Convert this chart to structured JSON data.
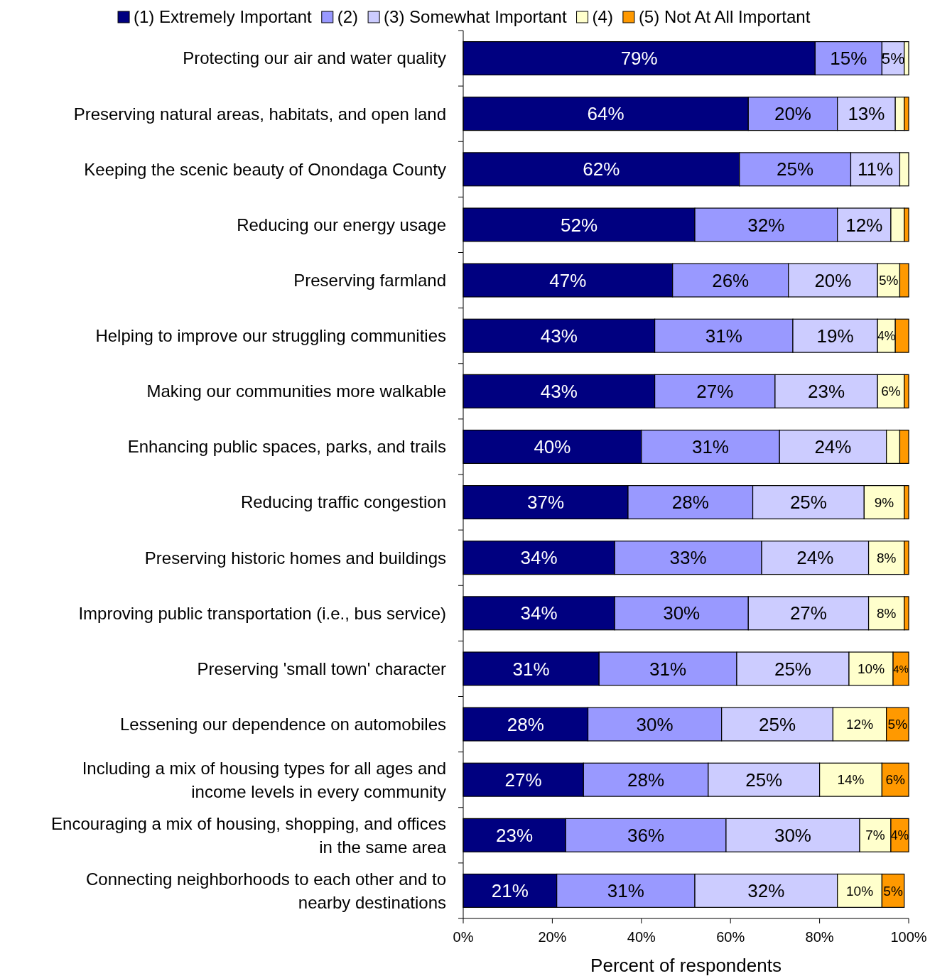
{
  "chart_data": {
    "type": "bar",
    "orientation": "horizontal",
    "stacked": true,
    "legend": "top",
    "grid": false,
    "xlabel": "Percent of respondents",
    "categories": [
      "Protecting our air and water quality",
      "Preserving natural areas, habitats, and open land",
      "Keeping the scenic beauty of Onondaga County",
      "Reducing our energy usage",
      "Preserving farmland",
      "Helping to improve our struggling communities",
      "Making our communities more walkable",
      "Enhancing public spaces, parks, and trails",
      "Reducing traffic congestion",
      "Preserving historic homes and buildings",
      "Improving public transportation (i.e., bus service)",
      "Preserving 'small town' character",
      "Lessening our dependence on automobiles",
      "Including a mix of housing types for all ages and income levels in every community",
      "Encouraging a mix of housing, shopping, and offices in the same area",
      "Connecting neighborhoods to each other and to nearby destinations"
    ],
    "xlim": [
      0,
      100
    ],
    "xticks": [
      {
        "value": 0,
        "label": "0%"
      },
      {
        "value": 20,
        "label": "20%"
      },
      {
        "value": 40,
        "label": "40%"
      },
      {
        "value": 60,
        "label": "60%"
      },
      {
        "value": 80,
        "label": "80%"
      },
      {
        "value": 100,
        "label": "100%"
      }
    ],
    "series": [
      {
        "name": "(1) Extremely Important",
        "color": "#000080",
        "values": [
          79,
          64,
          62,
          52,
          47,
          43,
          43,
          40,
          37,
          34,
          34,
          30.5,
          28,
          27,
          23,
          21
        ],
        "value_labels": [
          "79%",
          "64%",
          "62%",
          "52%",
          "47%",
          "43%",
          "43%",
          "40%",
          "37%",
          "34%",
          "34%",
          "31%",
          "28%",
          "27%",
          "23%",
          "21%"
        ]
      },
      {
        "name": "(2)",
        "color": "#9999ff",
        "values": [
          15,
          20,
          25,
          32,
          26,
          31,
          27,
          31,
          28,
          33,
          30,
          30.9,
          30,
          28,
          36,
          31
        ],
        "value_labels": [
          "15%",
          "20%",
          "25%",
          "32%",
          "26%",
          "31%",
          "27%",
          "31%",
          "28%",
          "33%",
          "30%",
          "31%",
          "30%",
          "28%",
          "36%",
          "31%"
        ]
      },
      {
        "name": "(3) Somewhat Important",
        "color": "#ccccff",
        "values": [
          5,
          13,
          11,
          12,
          20,
          19,
          23,
          24,
          25,
          24,
          27,
          25.2,
          25,
          25,
          30,
          32
        ],
        "value_labels": [
          "5%",
          "13%",
          "11%",
          "12%",
          "20%",
          "19%",
          "23%",
          "24%",
          "25%",
          "24%",
          "27%",
          "25%",
          "25%",
          "25%",
          "30%",
          "32%"
        ]
      },
      {
        "name": "(4)",
        "color": "#ffffcc",
        "values": [
          1,
          2,
          2,
          3,
          5,
          4,
          6,
          3,
          9,
          8,
          8,
          9.9,
          12,
          14,
          7,
          10
        ],
        "value_labels": [
          null,
          null,
          null,
          null,
          "5%",
          "4%",
          "6%",
          null,
          "9%",
          "8%",
          "8%",
          "10%",
          "12%",
          "14%",
          "7%",
          "10%"
        ]
      },
      {
        "name": "(5) Not At All Important",
        "color": "#ff9900",
        "values": [
          0,
          1,
          0,
          1,
          2,
          3,
          1,
          2,
          1,
          1,
          1,
          3.5,
          5,
          6,
          4,
          5
        ],
        "value_labels": [
          null,
          null,
          null,
          null,
          null,
          null,
          null,
          null,
          null,
          null,
          null,
          "4%",
          "5%",
          "6%",
          "4%",
          "5%"
        ]
      }
    ]
  }
}
